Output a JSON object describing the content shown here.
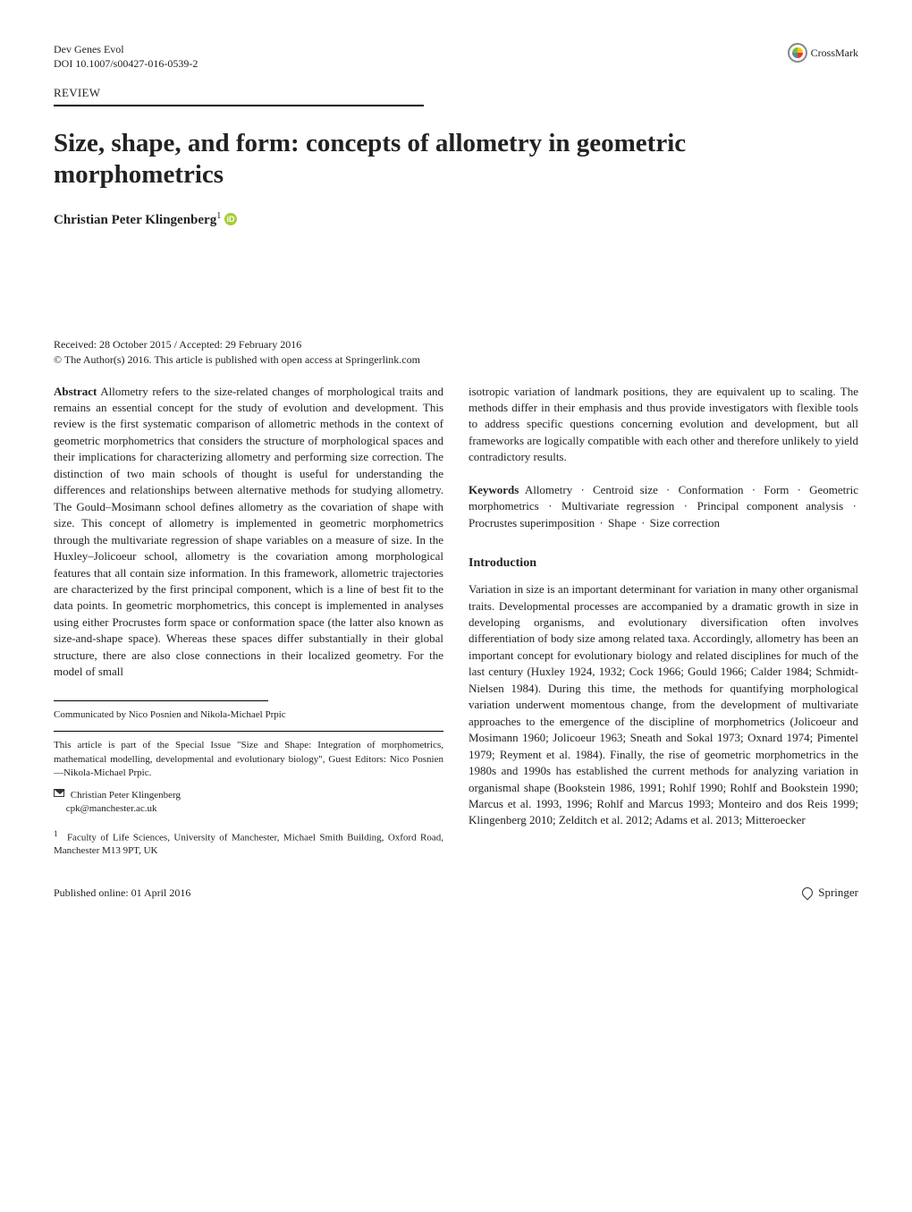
{
  "header": {
    "journal": "Dev Genes Evol",
    "doi": "DOI 10.1007/s00427-016-0539-2",
    "crossmark": "CrossMark",
    "section_label": "REVIEW"
  },
  "title": "Size, shape, and form: concepts of allometry in geometric morphometrics",
  "authors": {
    "name": "Christian Peter Klingenberg",
    "affil_marker": "1"
  },
  "dates": {
    "received": "Received: 28 October 2015 / Accepted: 29 February 2016",
    "copyright": "© The Author(s) 2016. This article is published with open access at Springerlink.com"
  },
  "abstract": {
    "label": "Abstract",
    "left_text": "Allometry refers to the size-related changes of morphological traits and remains an essential concept for the study of evolution and development. This review is the first systematic comparison of allometric methods in the context of geometric morphometrics that considers the structure of morphological spaces and their implications for characterizing allometry and performing size correction. The distinction of two main schools of thought is useful for understanding the differences and relationships between alternative methods for studying allometry. The Gould–Mosimann school defines allometry as the covariation of shape with size. This concept of allometry is implemented in geometric morphometrics through the multivariate regression of shape variables on a measure of size. In the Huxley–Jolicoeur school, allometry is the covariation among morphological features that all contain size information. In this framework, allometric trajectories are characterized by the first principal component, which is a line of best fit to the data points. In geometric morphometrics, this concept is implemented in analyses using either Procrustes form space or conformation space (the latter also known as size-and-shape space). Whereas these spaces differ substantially in their global structure, there are also close connections in their localized geometry. For the model of small",
    "right_text": "isotropic variation of landmark positions, they are equivalent up to scaling. The methods differ in their emphasis and thus provide investigators with flexible tools to address specific questions concerning evolution and development, but all frameworks are logically compatible with each other and therefore unlikely to yield contradictory results."
  },
  "keywords": {
    "label": "Keywords",
    "items": [
      "Allometry",
      "Centroid size",
      "Conformation",
      "Form",
      "Geometric morphometrics",
      "Multivariate regression",
      "Principal component analysis",
      "Procrustes superimposition",
      "Shape",
      "Size correction"
    ]
  },
  "intro": {
    "heading": "Introduction",
    "text": "Variation in size is an important determinant for variation in many other organismal traits. Developmental processes are accompanied by a dramatic growth in size in developing organisms, and evolutionary diversification often involves differentiation of body size among related taxa. Accordingly, allometry has been an important concept for evolutionary biology and related disciplines for much of the last century (Huxley 1924, 1932; Cock 1966; Gould 1966; Calder 1984; Schmidt-Nielsen 1984). During this time, the methods for quantifying morphological variation underwent momentous change, from the development of multivariate approaches to the emergence of the discipline of morphometrics (Jolicoeur and Mosimann 1960; Jolicoeur 1963; Sneath and Sokal 1973; Oxnard 1974; Pimentel 1979; Reyment et al. 1984). Finally, the rise of geometric morphometrics in the 1980s and 1990s has established the current methods for analyzing variation in organismal shape (Bookstein 1986, 1991; Rohlf 1990; Rohlf and Bookstein 1990; Marcus et al. 1993, 1996; Rohlf and Marcus 1993; Monteiro and dos Reis 1999; Klingenberg 2010; Zelditch et al. 2012; Adams et al. 2013; Mitteroecker"
  },
  "footnotes": {
    "communicated": "Communicated by Nico Posnien and Nikola-Michael Prpic",
    "special_issue": "This article is part of the Special Issue \"Size and Shape: Integration of morphometrics, mathematical modelling, developmental and evolutionary biology\", Guest Editors: Nico Posnien—Nikola-Michael Prpic.",
    "corr_name": "Christian Peter Klingenberg",
    "corr_email": "cpk@manchester.ac.uk",
    "affiliation": "Faculty of Life Sciences, University of Manchester, Michael Smith Building, Oxford Road, Manchester M13 9PT, UK"
  },
  "footer": {
    "published": "Published online: 01 April 2016",
    "publisher": "Springer"
  }
}
